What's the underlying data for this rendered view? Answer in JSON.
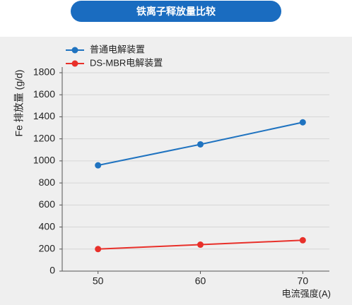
{
  "chart_data": {
    "type": "line",
    "title": "铁离子释放量比较",
    "y_label": "Fe 排放量 (g/d)",
    "x_label": "电流强度(A)",
    "x": [
      50,
      60,
      70
    ],
    "series": [
      {
        "name": "普通电解装置",
        "color": "#1f73c0",
        "values": [
          960,
          1150,
          1350
        ]
      },
      {
        "name": "DS-MBR电解装置",
        "color": "#e8302a",
        "values": [
          200,
          240,
          280
        ]
      }
    ],
    "xlim": [
      46.5,
      72.6
    ],
    "xticks": [
      50,
      60,
      70
    ],
    "ylim": [
      0,
      1800
    ],
    "yticks": [
      0,
      200,
      400,
      600,
      800,
      1000,
      1200,
      1400,
      1600,
      1800
    ],
    "grid": true,
    "legend": "top-left"
  }
}
